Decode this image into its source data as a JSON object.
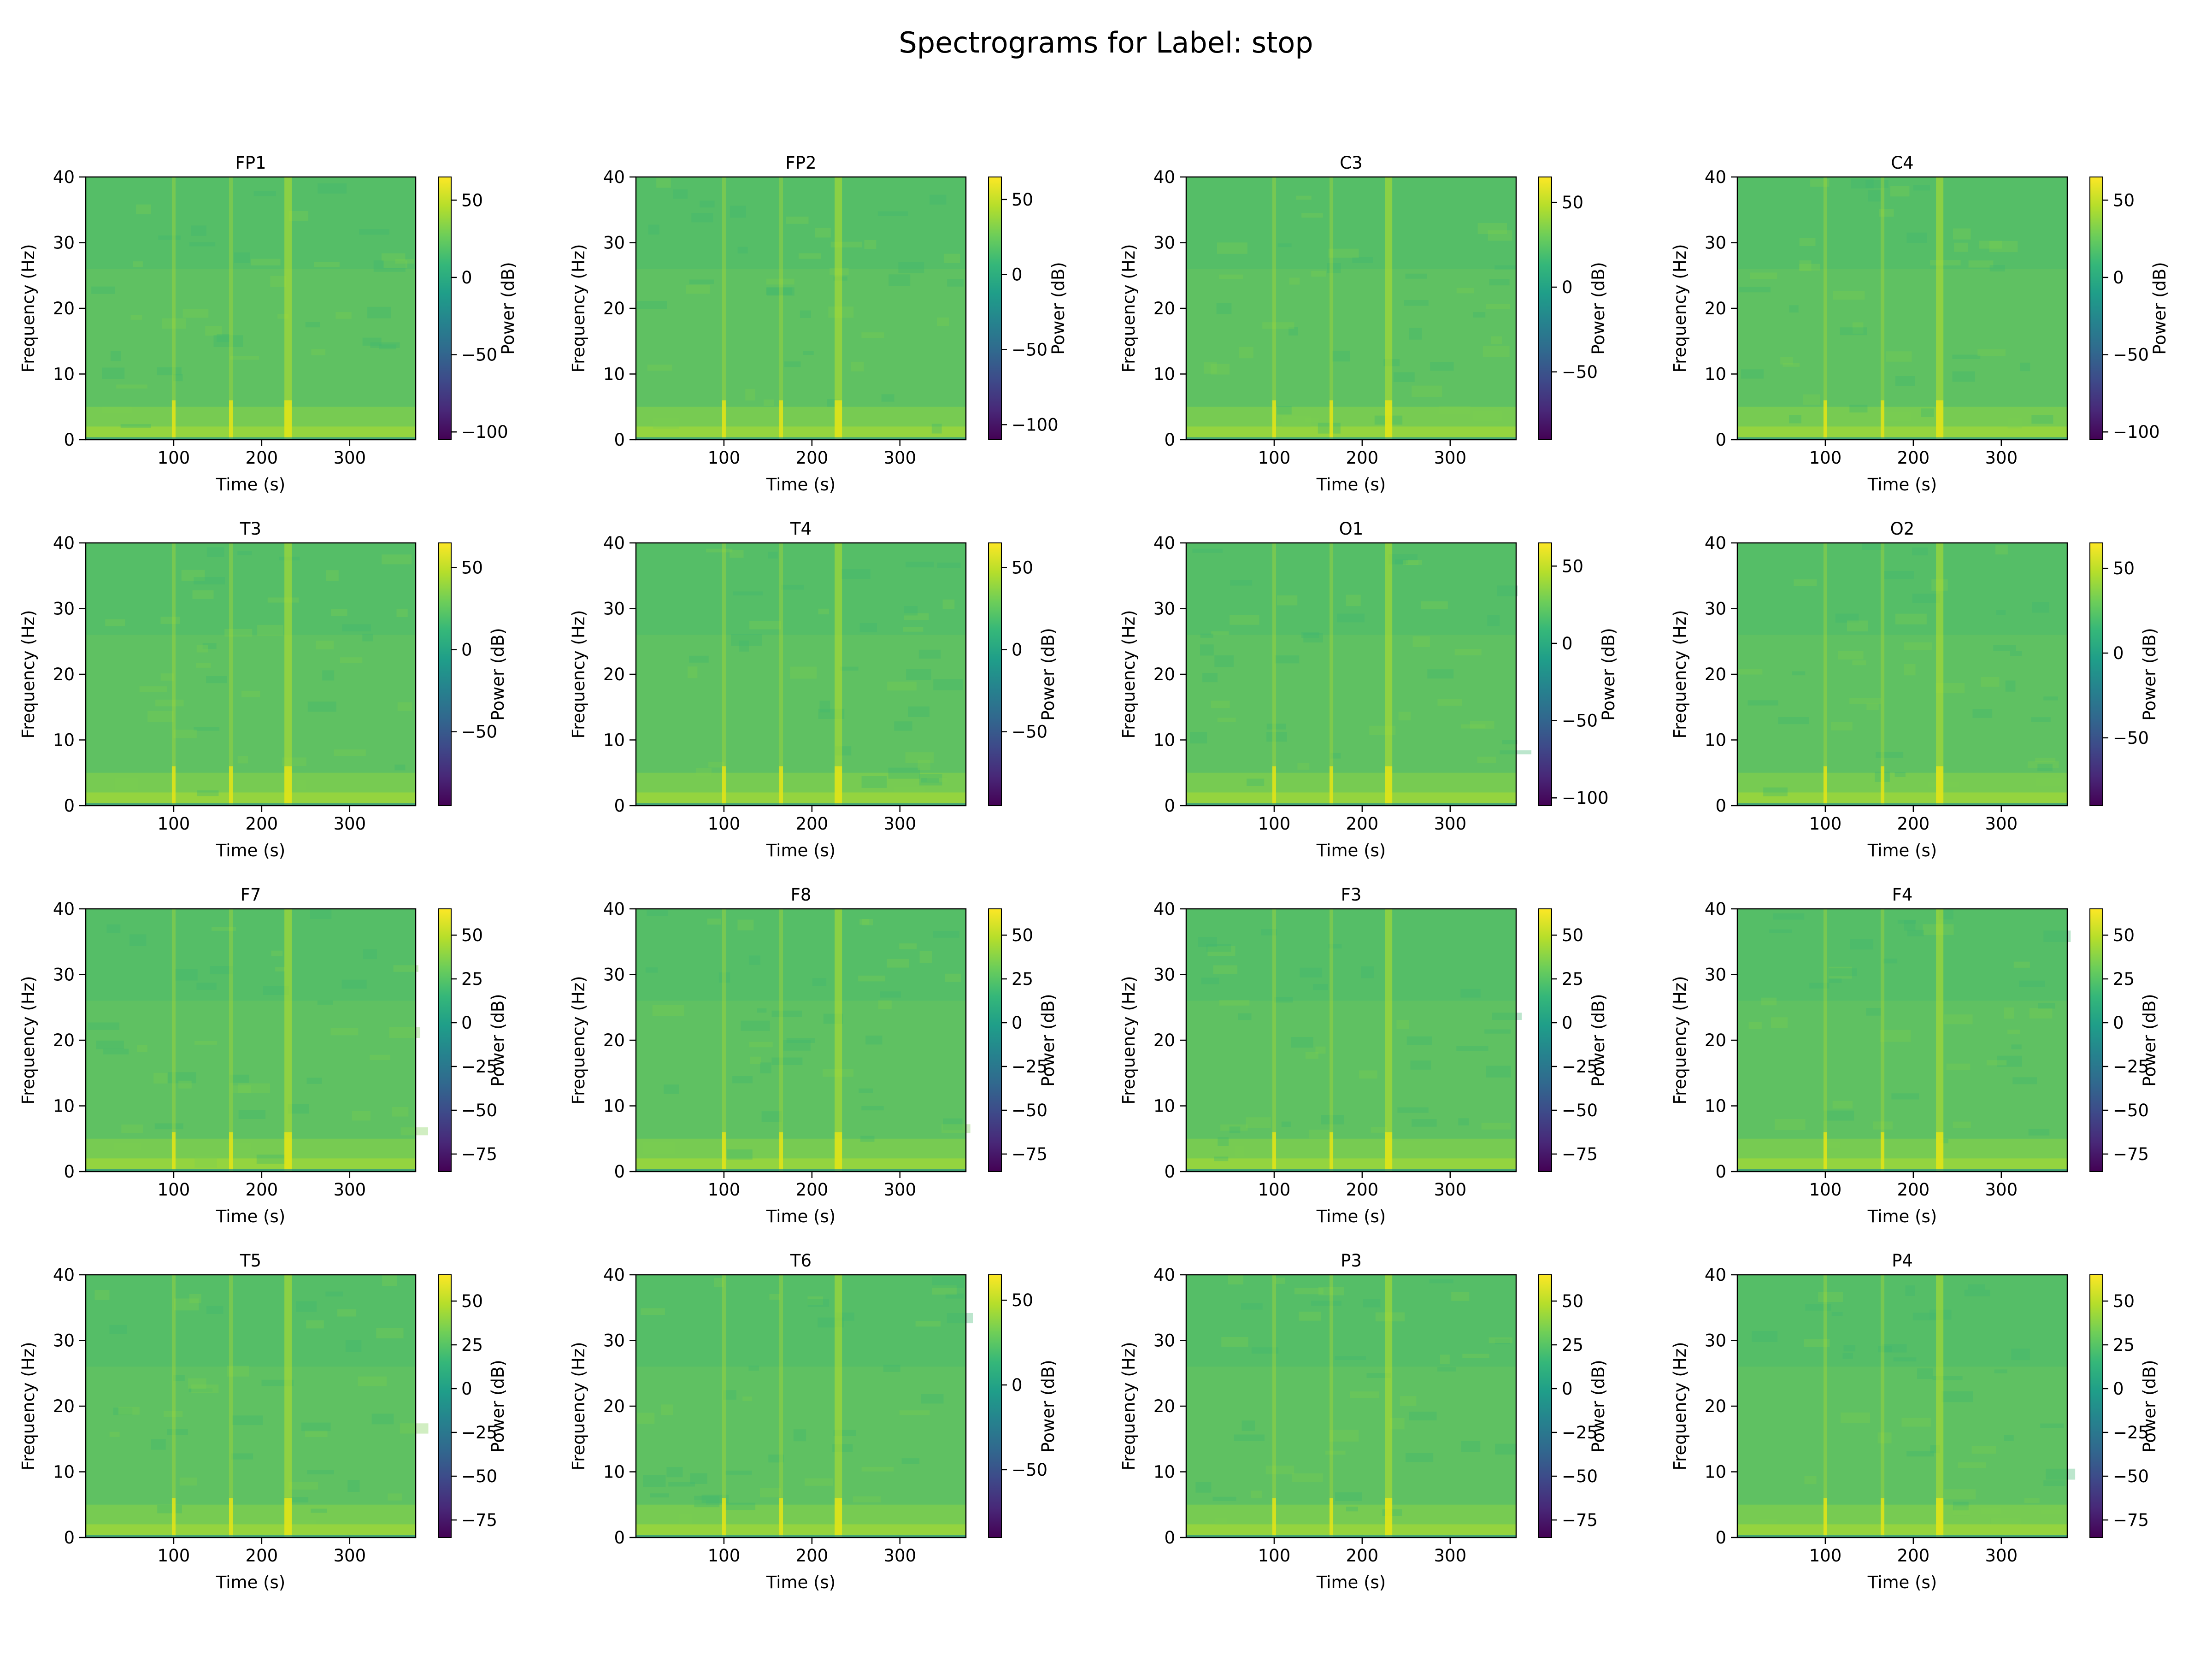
{
  "chart_data": {
    "type": "heatmap",
    "title": "Spectrograms for Label: stop",
    "colormap": "viridis",
    "colormap_stops": [
      "#440154",
      "#482878",
      "#3e4989",
      "#31688e",
      "#26828e",
      "#1f9e89",
      "#35b779",
      "#6ece58",
      "#b5de2b",
      "#fde725"
    ],
    "xlabel": "Time (s)",
    "ylabel": "Frequency (Hz)",
    "colorbar_label": "Power (dB)",
    "xticks": [
      "100",
      "200",
      "300"
    ],
    "xlim": [
      0,
      375
    ],
    "yticks": [
      "0",
      "10",
      "20",
      "30",
      "40"
    ],
    "ylim": [
      0,
      40
    ],
    "bright_time_bands_s": [
      100,
      165,
      230
    ],
    "channels": [
      {
        "name": "FP1",
        "cmin": -105,
        "cmax": 65,
        "cticks": [
          "50",
          "0",
          "−50",
          "−100"
        ]
      },
      {
        "name": "FP2",
        "cmin": -110,
        "cmax": 65,
        "cticks": [
          "50",
          "0",
          "−50",
          "−100"
        ]
      },
      {
        "name": "C3",
        "cmin": -90,
        "cmax": 65,
        "cticks": [
          "50",
          "0",
          "−50"
        ]
      },
      {
        "name": "C4",
        "cmin": -105,
        "cmax": 65,
        "cticks": [
          "50",
          "0",
          "−50",
          "−100"
        ]
      },
      {
        "name": "T3",
        "cmin": -95,
        "cmax": 65,
        "cticks": [
          "50",
          "0",
          "−50"
        ]
      },
      {
        "name": "T4",
        "cmin": -95,
        "cmax": 65,
        "cticks": [
          "50",
          "0",
          "−50"
        ]
      },
      {
        "name": "O1",
        "cmin": -105,
        "cmax": 65,
        "cticks": [
          "50",
          "0",
          "−50",
          "−100"
        ]
      },
      {
        "name": "O2",
        "cmin": -90,
        "cmax": 65,
        "cticks": [
          "50",
          "0",
          "−50"
        ]
      },
      {
        "name": "F7",
        "cmin": -85,
        "cmax": 65,
        "cticks": [
          "50",
          "25",
          "0",
          "−25",
          "−50",
          "−75"
        ]
      },
      {
        "name": "F8",
        "cmin": -85,
        "cmax": 65,
        "cticks": [
          "50",
          "25",
          "0",
          "−25",
          "−50",
          "−75"
        ]
      },
      {
        "name": "F3",
        "cmin": -85,
        "cmax": 65,
        "cticks": [
          "50",
          "25",
          "0",
          "−25",
          "−50",
          "−75"
        ]
      },
      {
        "name": "F4",
        "cmin": -85,
        "cmax": 65,
        "cticks": [
          "50",
          "25",
          "0",
          "−25",
          "−50",
          "−75"
        ]
      },
      {
        "name": "T5",
        "cmin": -85,
        "cmax": 65,
        "cticks": [
          "50",
          "25",
          "0",
          "−25",
          "−50",
          "−75"
        ]
      },
      {
        "name": "T6",
        "cmin": -90,
        "cmax": 65,
        "cticks": [
          "50",
          "0",
          "−50"
        ]
      },
      {
        "name": "P3",
        "cmin": -85,
        "cmax": 65,
        "cticks": [
          "50",
          "25",
          "0",
          "−25",
          "−50",
          "−75"
        ]
      },
      {
        "name": "P4",
        "cmin": -85,
        "cmax": 65,
        "cticks": [
          "50",
          "25",
          "0",
          "−25",
          "−50",
          "−75"
        ]
      }
    ]
  }
}
